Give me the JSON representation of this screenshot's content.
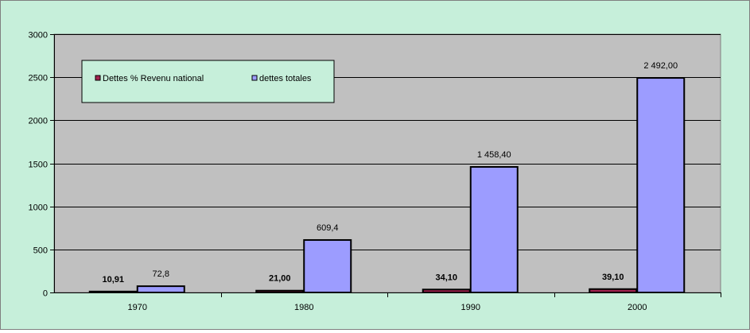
{
  "chart_data": {
    "type": "bar",
    "title": "",
    "xlabel": "",
    "ylabel": "",
    "categories": [
      "1970",
      "1980",
      "1990",
      "2000"
    ],
    "series": [
      {
        "name": "Dettes % Revenu national",
        "values": [
          10.91,
          21.0,
          34.1,
          39.1
        ],
        "labels": [
          "10,91",
          "21,00",
          "34,10",
          "39,10"
        ],
        "color": "#a3224f",
        "label_bold": true
      },
      {
        "name": "dettes totales",
        "values": [
          72.8,
          609.4,
          1458.4,
          2492.0
        ],
        "labels": [
          "72,8",
          "609,4",
          "1 458,40",
          "2 492,00"
        ],
        "color": "#9c9cff",
        "label_bold": false
      }
    ],
    "ylim": [
      0,
      3000
    ],
    "yticks": [
      0,
      500,
      1000,
      1500,
      2000,
      2500,
      3000
    ],
    "ytick_labels": [
      "0",
      "500",
      "1000",
      "1500",
      "2000",
      "2500",
      "3000"
    ],
    "grid": true,
    "legend_position": "top-left",
    "plot_background": "#c0c0c0",
    "chart_background": "#c6efda",
    "legend_background": "#c6efda"
  }
}
